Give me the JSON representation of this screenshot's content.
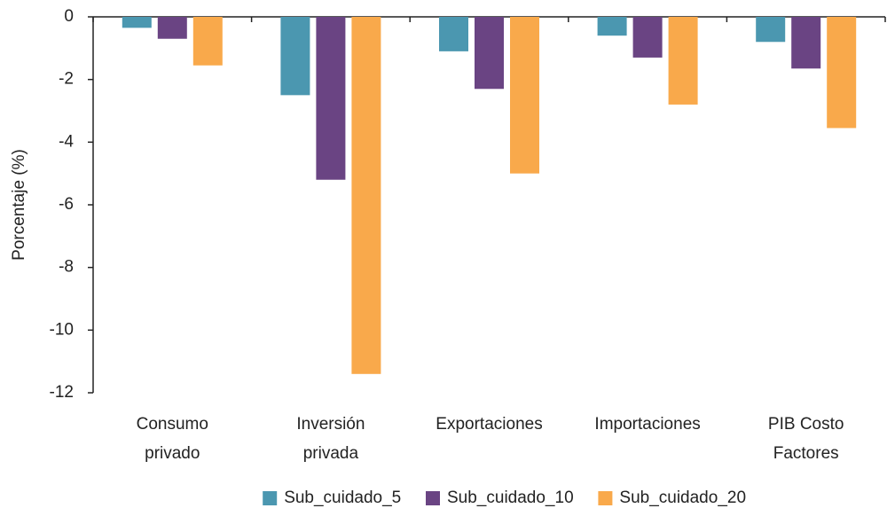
{
  "chart_data": {
    "type": "bar",
    "y_label": "Porcentaje (%)",
    "categories": [
      [
        "Consumo",
        "privado"
      ],
      [
        "Inversión",
        "privada"
      ],
      [
        "Exportaciones"
      ],
      [
        "Importaciones"
      ],
      [
        "PIB Costo",
        "Factores"
      ]
    ],
    "series": [
      {
        "name": "Sub_cuidado_5",
        "color": "#4b97b0",
        "values": [
          -0.35,
          -2.5,
          -1.1,
          -0.6,
          -0.8
        ]
      },
      {
        "name": "Sub_cuidado_10",
        "color": "#6a4483",
        "values": [
          -0.7,
          -5.2,
          -2.3,
          -1.3,
          -1.65
        ]
      },
      {
        "name": "Sub_cuidado_20",
        "color": "#f9a94b",
        "values": [
          -1.55,
          -11.4,
          -5.0,
          -2.8,
          -3.55
        ]
      }
    ],
    "ylim": [
      -12,
      0
    ],
    "yticks": [
      0,
      -2,
      -4,
      -6,
      -8,
      -10,
      -12
    ],
    "grid": false,
    "legend": "bottom"
  }
}
